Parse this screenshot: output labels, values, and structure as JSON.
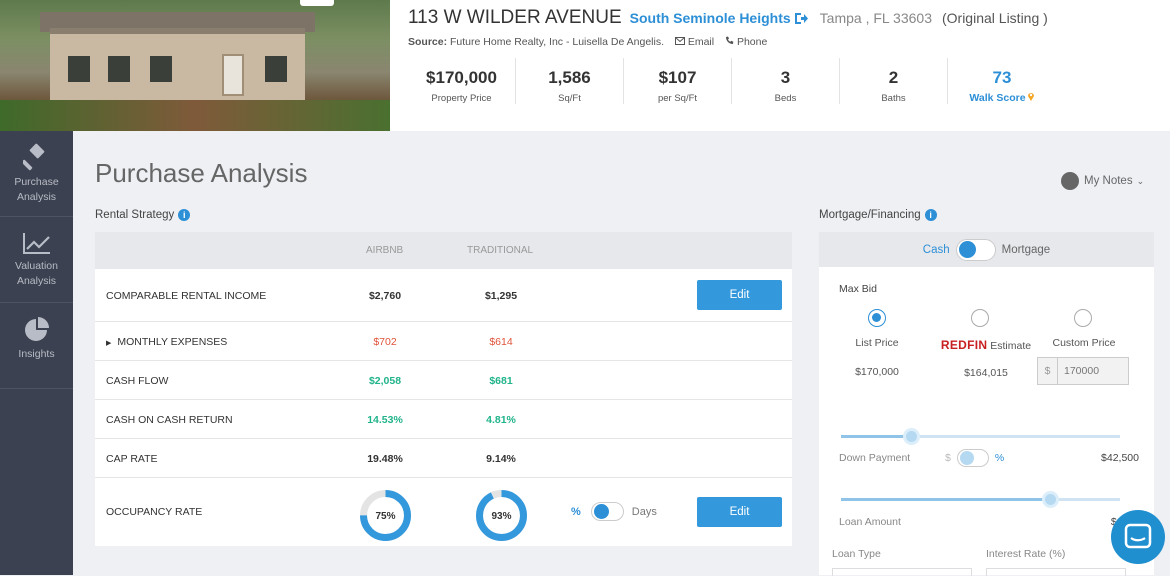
{
  "listing": {
    "address": "113 W WILDER AVENUE",
    "neighborhood": "South Seminole Heights",
    "city": "Tampa , FL 33603",
    "status": "(Original Listing )",
    "source_label": "Source:",
    "source_text": "Future Home Realty, Inc - Luisella De Angelis.",
    "email_label": "Email",
    "phone_label": "Phone"
  },
  "stats": [
    {
      "value": "$170,000",
      "label": "Property Price"
    },
    {
      "value": "1,586",
      "label": "Sq/Ft"
    },
    {
      "value": "$107",
      "label": "per Sq/Ft"
    },
    {
      "value": "3",
      "label": "Beds"
    },
    {
      "value": "2",
      "label": "Baths"
    },
    {
      "value": "73",
      "label": "Walk Score"
    }
  ],
  "sidebar": [
    {
      "label": "Purchase Analysis",
      "icon": "gavel-icon"
    },
    {
      "label": "Valuation Analysis",
      "icon": "chart-line-icon"
    },
    {
      "label": "Insights",
      "icon": "pie-chart-icon"
    }
  ],
  "page": {
    "title": "Purchase Analysis",
    "notes_label": "My Notes"
  },
  "rental": {
    "section_label": "Rental Strategy",
    "columns": [
      "AIRBNB",
      "TRADITIONAL"
    ],
    "edit_label": "Edit",
    "rows": {
      "comparable_income": {
        "label": "COMPARABLE RENTAL INCOME",
        "airbnb": "$2,760",
        "traditional": "$1,295"
      },
      "monthly_expenses": {
        "label": "MONTHLY EXPENSES",
        "airbnb": "$702",
        "traditional": "$614"
      },
      "cash_flow": {
        "label": "CASH FLOW",
        "airbnb": "$2,058",
        "traditional": "$681"
      },
      "coc_return": {
        "label": "CASH ON CASH RETURN",
        "airbnb": "14.53%",
        "traditional": "4.81%"
      },
      "cap_rate": {
        "label": "CAP RATE",
        "airbnb": "19.48%",
        "traditional": "9.14%"
      },
      "occupancy": {
        "label": "OCCUPANCY RATE",
        "airbnb": "75%",
        "traditional": "93%",
        "airbnb_fraction": 0.75,
        "traditional_fraction": 0.93
      }
    },
    "occupancy_toggle": {
      "left": "%",
      "right": "Days"
    }
  },
  "mortgage": {
    "section_label": "Mortgage/Financing",
    "toggle_left": "Cash",
    "toggle_right": "Mortgage",
    "max_bid_label": "Max Bid",
    "options": [
      {
        "label": "List Price",
        "value": "$170,000",
        "selected": true
      },
      {
        "brand": "REDFIN",
        "label": "Estimate",
        "value": "$164,015",
        "selected": false
      },
      {
        "label": "Custom Price",
        "value": "170000",
        "currency": "$",
        "selected": false
      }
    ],
    "down_payment": {
      "label": "Down Payment",
      "unit_left": "$",
      "unit_right": "%",
      "amount": "$42,500",
      "fraction": 0.25
    },
    "loan_amount": {
      "label": "Loan Amount",
      "amount": "$127,5",
      "fraction": 0.75
    },
    "loan_type_label": "Loan Type",
    "interest_rate_label": "Interest Rate (%)"
  },
  "colors": {
    "accent": "#2d8fd6",
    "positive": "#21b48a",
    "negative": "#e0533a",
    "sidebar": "#3b4150"
  }
}
